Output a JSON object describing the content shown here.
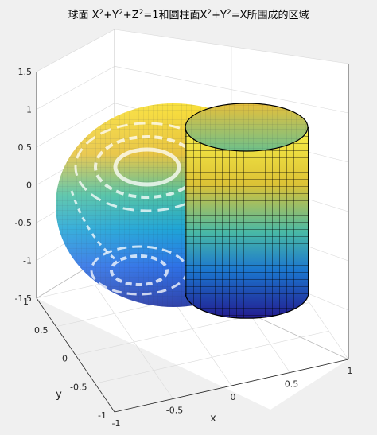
{
  "chart_data": {
    "type": "surface3d",
    "title_parts": {
      "p1": "球面 X",
      "s1": "2",
      "p2": "+Y",
      "s2": "2",
      "p3": "+Z",
      "s3": "2",
      "p4": "=1和圆柱面X",
      "s4": "2",
      "p5": "+Y",
      "s5": "2",
      "p6": "=X所围成的区域"
    },
    "xlabel": "x",
    "ylabel": "y",
    "zlabel": "",
    "xlim": [
      -1,
      1
    ],
    "ylim": [
      -1,
      1
    ],
    "zlim": [
      -1.5,
      1.5
    ],
    "x_ticks": [
      "-1",
      "-0.5",
      "0",
      "0.5",
      "1"
    ],
    "y_ticks": [
      "-1",
      "-0.5",
      "0",
      "0.5",
      "1"
    ],
    "z_ticks": [
      "-1.5",
      "-1",
      "-0.5",
      "0",
      "0.5",
      "1",
      "1.5"
    ],
    "grid": true,
    "colormap": "parula",
    "series": [
      {
        "surface": "sphere",
        "equation": "x^2+y^2+z^2=1"
      },
      {
        "surface": "cylinder",
        "equation": "x^2+y^2=x"
      }
    ]
  }
}
